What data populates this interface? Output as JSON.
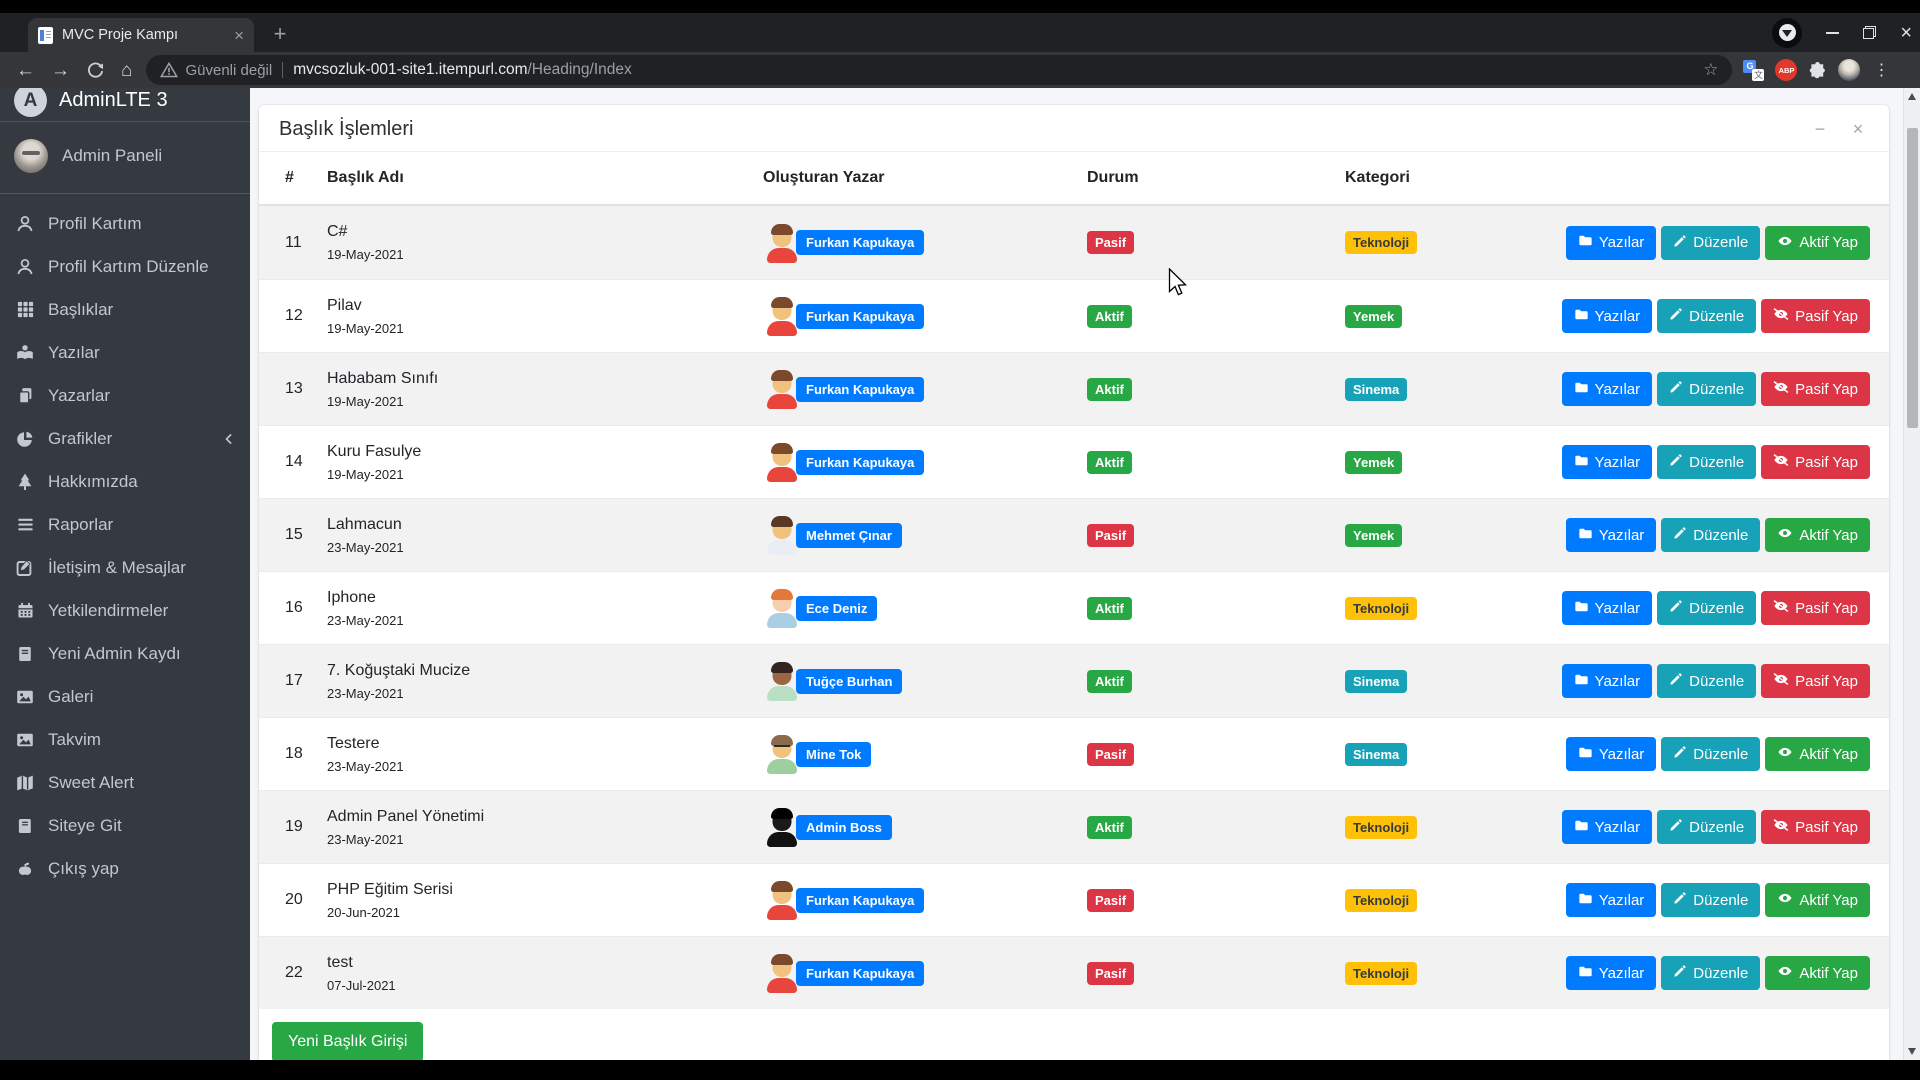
{
  "browser": {
    "tab_title": "MVC Proje Kampı",
    "security_warning": "Güvenli değil",
    "url_host": "mvcsozluk-001-site1.itempurl.com",
    "url_path": "/Heading/Index"
  },
  "icons_text": {
    "back": "←",
    "forward": "→",
    "home": "⌂",
    "star": "☆",
    "kebab": "⋮",
    "new_tab": "+",
    "tab_close": "×",
    "win_close": "×",
    "card_minimize": "−",
    "card_close": "×",
    "abp": "ABP",
    "translate_g": "G",
    "translate_char": "文",
    "brand_letter": "A"
  },
  "sidebar": {
    "brand": "AdminLTE 3",
    "user": "Admin Paneli",
    "items": [
      {
        "label": "Profil Kartım",
        "icon": "user-icon"
      },
      {
        "label": "Profil Kartım Düzenle",
        "icon": "user-icon"
      },
      {
        "label": "Başlıklar",
        "icon": "grid-icon"
      },
      {
        "label": "Yazılar",
        "icon": "reader-icon"
      },
      {
        "label": "Yazarlar",
        "icon": "copy-icon"
      },
      {
        "label": "Grafikler",
        "icon": "pie-chart-icon",
        "chevron": true
      },
      {
        "label": "Hakkımızda",
        "icon": "tree-icon"
      },
      {
        "label": "Raporlar",
        "icon": "bars-icon"
      },
      {
        "label": "İletişim & Mesajlar",
        "icon": "edit-icon"
      },
      {
        "label": "Yetkilendirmeler",
        "icon": "calendar-icon"
      },
      {
        "label": "Yeni Admin Kaydı",
        "icon": "notebook-icon"
      },
      {
        "label": "Galeri",
        "icon": "image-icon"
      },
      {
        "label": "Takvim",
        "icon": "image-icon"
      },
      {
        "label": "Sweet Alert",
        "icon": "map-icon"
      },
      {
        "label": "Siteye Git",
        "icon": "book-icon"
      },
      {
        "label": "Çıkış yap",
        "icon": "apple-icon"
      }
    ]
  },
  "card": {
    "title": "Başlık İşlemleri",
    "new_button": "Yeni Başlık Girişi"
  },
  "table": {
    "headers": {
      "id": "#",
      "title": "Başlık Adı",
      "author": "Oluşturan Yazar",
      "status": "Durum",
      "category": "Kategori"
    },
    "button_labels": {
      "yazilar": "Yazılar",
      "duzenle": "Düzenle"
    },
    "rows": [
      {
        "id": "11",
        "title": "C#",
        "date": "19-May-2021",
        "author": "Furkan Kapukaya",
        "status": "Pasif",
        "category": "Teknoloji",
        "action": "Aktif Yap",
        "avatar": "furkan"
      },
      {
        "id": "12",
        "title": "Pilav",
        "date": "19-May-2021",
        "author": "Furkan Kapukaya",
        "status": "Aktif",
        "category": "Yemek",
        "action": "Pasif Yap",
        "avatar": "furkan"
      },
      {
        "id": "13",
        "title": "Hababam Sınıfı",
        "date": "19-May-2021",
        "author": "Furkan Kapukaya",
        "status": "Aktif",
        "category": "Sinema",
        "action": "Pasif Yap",
        "avatar": "furkan"
      },
      {
        "id": "14",
        "title": "Kuru Fasulye",
        "date": "19-May-2021",
        "author": "Furkan Kapukaya",
        "status": "Aktif",
        "category": "Yemek",
        "action": "Pasif Yap",
        "avatar": "furkan"
      },
      {
        "id": "15",
        "title": "Lahmacun",
        "date": "23-May-2021",
        "author": "Mehmet Çınar",
        "status": "Pasif",
        "category": "Yemek",
        "action": "Aktif Yap",
        "avatar": "mehmet"
      },
      {
        "id": "16",
        "title": "Iphone",
        "date": "23-May-2021",
        "author": "Ece Deniz",
        "status": "Aktif",
        "category": "Teknoloji",
        "action": "Pasif Yap",
        "avatar": "ece"
      },
      {
        "id": "17",
        "title": "7. Koğuştaki Mucize",
        "date": "23-May-2021",
        "author": "Tuğçe Burhan",
        "status": "Aktif",
        "category": "Sinema",
        "action": "Pasif Yap",
        "avatar": "tugce"
      },
      {
        "id": "18",
        "title": "Testere",
        "date": "23-May-2021",
        "author": "Mine Tok",
        "status": "Pasif",
        "category": "Sinema",
        "action": "Aktif Yap",
        "avatar": "mine"
      },
      {
        "id": "19",
        "title": "Admin Panel Yönetimi",
        "date": "23-May-2021",
        "author": "Admin Boss",
        "status": "Aktif",
        "category": "Teknoloji",
        "action": "Pasif Yap",
        "avatar": "admin"
      },
      {
        "id": "20",
        "title": "PHP Eğitim Serisi",
        "date": "20-Jun-2021",
        "author": "Furkan Kapukaya",
        "status": "Pasif",
        "category": "Teknoloji",
        "action": "Aktif Yap",
        "avatar": "furkan"
      },
      {
        "id": "22",
        "title": "test",
        "date": "07-Jul-2021",
        "author": "Furkan Kapukaya",
        "status": "Pasif",
        "category": "Teknoloji",
        "action": "Aktif Yap",
        "avatar": "furkan"
      }
    ]
  },
  "avatars": {
    "furkan": {
      "skin": "#f1c27d",
      "hair": "#7b4a2d",
      "shirt": "#e8463c"
    },
    "mehmet": {
      "skin": "#f1c27d",
      "hair": "#5a3825",
      "shirt": "#e9eef4"
    },
    "ece": {
      "skin": "#f8cfae",
      "hair": "#e2793b",
      "shirt": "#aacfe4"
    },
    "tugce": {
      "skin": "#9c6644",
      "hair": "#33241f",
      "shirt": "#b9e0c5"
    },
    "mine": {
      "skin": "#f1c27d",
      "hair": "#8a6b4d",
      "shirt": "#9fcf9f",
      "glasses": true
    },
    "admin": {
      "skin": "#1a1a1a",
      "hair": "#000000",
      "shirt": "#111111"
    }
  },
  "colors": {
    "primary": "#007bff",
    "info": "#17a2b8",
    "success": "#28a745",
    "danger": "#dc3545",
    "warning": "#ffc107",
    "status": {
      "Aktif": "#28a745",
      "Pasif": "#dc3545"
    },
    "category": {
      "Teknoloji": "#ffc107",
      "Yemek": "#28a745",
      "Sinema": "#17a2b8"
    },
    "category_text": {
      "Teknoloji": "#343a40",
      "Yemek": "#ffffff",
      "Sinema": "#ffffff"
    }
  }
}
